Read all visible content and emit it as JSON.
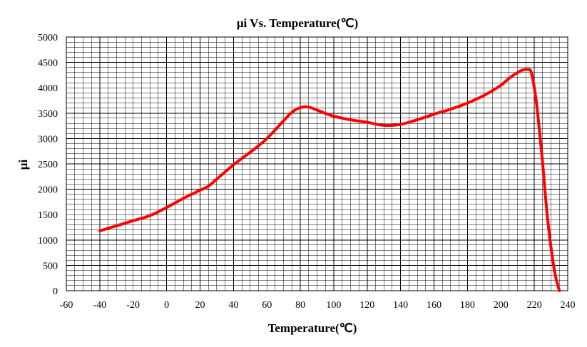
{
  "chart_data": {
    "type": "line",
    "title": "μi Vs. Temperature(℃)",
    "xlabel": "Temperature(℃)",
    "ylabel": "μi",
    "xlim": [
      -60,
      240
    ],
    "ylim": [
      0,
      5000
    ],
    "x_ticks": [
      "-60",
      "-40",
      "-20",
      "0",
      "20",
      "40",
      "60",
      "80",
      "100",
      "120",
      "140",
      "160",
      "180",
      "200",
      "220",
      "240"
    ],
    "y_ticks": [
      "0",
      "500",
      "1000",
      "1500",
      "2000",
      "2500",
      "3000",
      "3500",
      "4000",
      "4500",
      "5000"
    ],
    "grid": true,
    "legend": "none",
    "series": [
      {
        "color": "#ff0000",
        "x": [
          -40,
          -30,
          -20,
          -10,
          0,
          10,
          20,
          25,
          30,
          40,
          50,
          60,
          70,
          75,
          80,
          85,
          90,
          100,
          110,
          120,
          130,
          140,
          150,
          160,
          170,
          180,
          190,
          200,
          205,
          210,
          213,
          216,
          218,
          220,
          222,
          225,
          228,
          232,
          235
        ],
        "y": [
          1180,
          1280,
          1380,
          1480,
          1640,
          1820,
          1980,
          2060,
          2200,
          2480,
          2730,
          3000,
          3350,
          3520,
          3610,
          3620,
          3560,
          3440,
          3370,
          3320,
          3260,
          3280,
          3370,
          3480,
          3580,
          3700,
          3850,
          4050,
          4190,
          4300,
          4350,
          4360,
          4320,
          4000,
          3500,
          2500,
          1400,
          400,
          0
        ]
      }
    ]
  }
}
